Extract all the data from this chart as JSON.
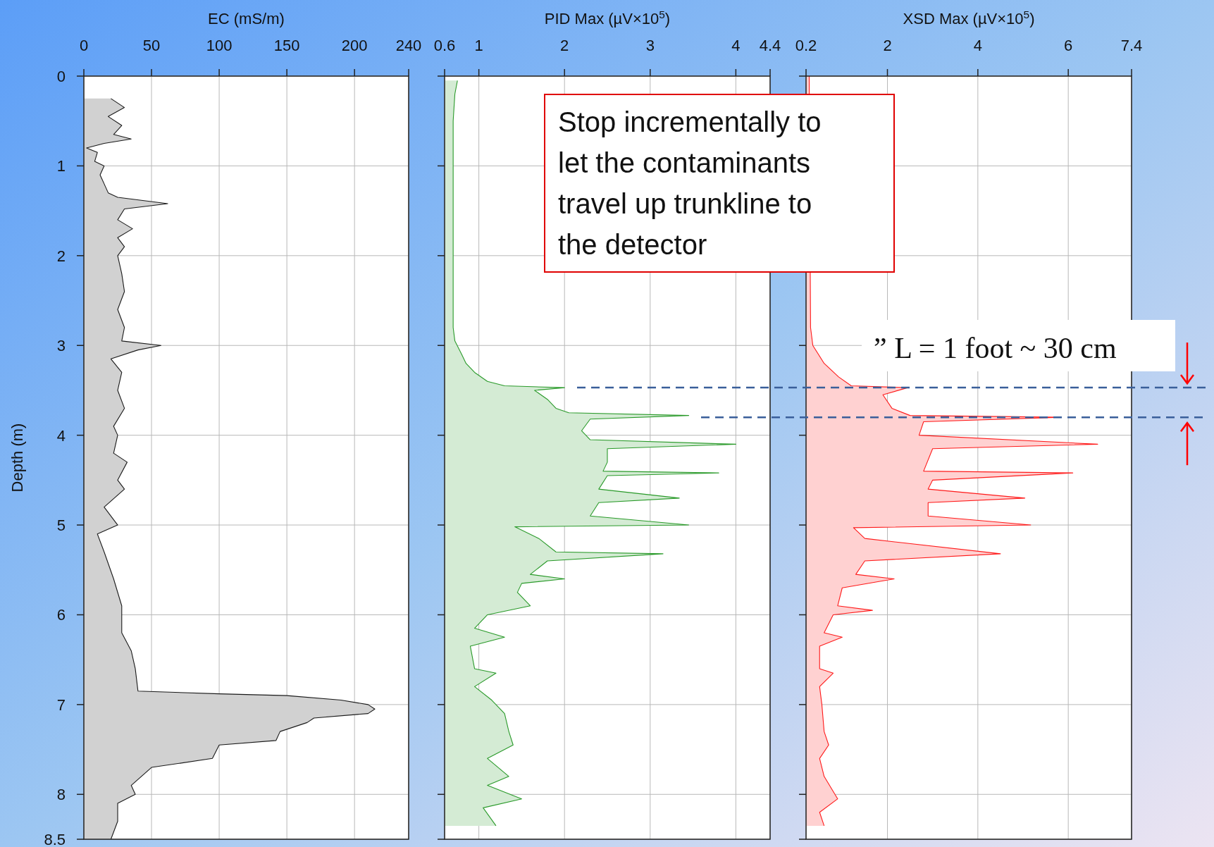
{
  "chart_data": [
    {
      "type": "area",
      "orientation": "horizontal",
      "xlabel": "EC (mS/m)",
      "ylabel": "Depth (m)",
      "xlim": [
        0,
        240
      ],
      "xticks": [
        0,
        50,
        100,
        150,
        200,
        240
      ],
      "ylim": [
        8.5,
        0
      ],
      "yticks": [
        0,
        1,
        2,
        3,
        4,
        5,
        6,
        7,
        8,
        8.5
      ],
      "grid": true,
      "series": [
        {
          "color": "#1a1a1a",
          "values": [
            20,
            30,
            18,
            28,
            22,
            35,
            15,
            2,
            10,
            8,
            15,
            12,
            15,
            18,
            25,
            62,
            30,
            25,
            36,
            25,
            30,
            25,
            28,
            30,
            25,
            30,
            28,
            57,
            40,
            20,
            28,
            25,
            30,
            22,
            25,
            22,
            32,
            25,
            30,
            15,
            25,
            10,
            15,
            22,
            28,
            28,
            35,
            38,
            40,
            100,
            150,
            190,
            210,
            215,
            210,
            170,
            165,
            145,
            142,
            100,
            95,
            50,
            35,
            38,
            25,
            25,
            20
          ],
          "x": [
            0.25,
            0.35,
            0.45,
            0.55,
            0.65,
            0.7,
            0.75,
            0.8,
            0.85,
            0.95,
            1.0,
            1.1,
            1.2,
            1.3,
            1.35,
            1.42,
            1.48,
            1.6,
            1.7,
            1.8,
            1.9,
            2.0,
            2.2,
            2.4,
            2.6,
            2.8,
            2.95,
            3.0,
            3.05,
            3.15,
            3.3,
            3.5,
            3.7,
            3.9,
            4.0,
            4.2,
            4.3,
            4.5,
            4.6,
            4.8,
            5.0,
            5.1,
            5.3,
            5.6,
            5.9,
            6.2,
            6.4,
            6.6,
            6.85,
            6.88,
            6.9,
            6.95,
            7.0,
            7.05,
            7.1,
            7.15,
            7.2,
            7.3,
            7.4,
            7.45,
            7.6,
            7.7,
            7.9,
            8.0,
            8.1,
            8.3,
            8.5
          ]
        }
      ]
    },
    {
      "type": "area",
      "orientation": "horizontal",
      "xlabel": "PID Max (µV×10$^{5}$)",
      "xlim": [
        0.6,
        4.4
      ],
      "xticks": [
        0.6,
        1,
        2,
        3,
        4,
        4.4
      ],
      "ylim": [
        8.5,
        0
      ],
      "yticks": [
        0,
        1,
        2,
        3,
        4,
        5,
        6,
        7,
        8,
        8.5
      ],
      "grid": true,
      "tick_labels": "x",
      "annotations": [
        "Stop incrementally to let the contaminants travel up trunkline to the detector"
      ],
      "series": [
        {
          "color": "#2a9a2a",
          "values": [
            0.75,
            0.72,
            0.7,
            0.7,
            0.7,
            0.7,
            0.72,
            0.8,
            0.85,
            0.95,
            1.1,
            1.3,
            2.0,
            1.65,
            1.8,
            1.9,
            2.05,
            3.45,
            2.3,
            2.2,
            2.3,
            4.0,
            2.5,
            2.5,
            2.45,
            3.8,
            2.5,
            2.4,
            3.34,
            2.4,
            2.3,
            3.45,
            1.42,
            1.7,
            1.9,
            3.15,
            1.8,
            1.6,
            2.0,
            1.5,
            1.45,
            1.6,
            1.1,
            0.95,
            1.3,
            0.9,
            0.95,
            1.2,
            0.95,
            1.15,
            1.3,
            1.35,
            1.4,
            1.1,
            1.35,
            1.1,
            1.5,
            1.05,
            1.2
          ],
          "x": [
            0.05,
            0.2,
            0.5,
            1.0,
            2.0,
            2.8,
            2.95,
            3.1,
            3.2,
            3.3,
            3.4,
            3.45,
            3.47,
            3.5,
            3.6,
            3.7,
            3.75,
            3.78,
            3.82,
            3.95,
            4.05,
            4.1,
            4.15,
            4.3,
            4.4,
            4.42,
            4.45,
            4.6,
            4.7,
            4.75,
            4.9,
            5.0,
            5.02,
            5.15,
            5.3,
            5.32,
            5.4,
            5.55,
            5.6,
            5.65,
            5.75,
            5.9,
            6.0,
            6.15,
            6.25,
            6.35,
            6.6,
            6.65,
            6.8,
            6.95,
            7.1,
            7.3,
            7.45,
            7.6,
            7.8,
            7.9,
            8.05,
            8.15,
            8.35
          ]
        }
      ]
    },
    {
      "type": "area",
      "orientation": "horizontal",
      "xlabel": "XSD Max (µV×10$^{5}$)",
      "xlim": [
        0.2,
        7.4
      ],
      "xticks": [
        0.2,
        2,
        4,
        6,
        7.4
      ],
      "ylim": [
        8.5,
        0
      ],
      "yticks": [
        0,
        1,
        2,
        3,
        4,
        5,
        6,
        7,
        8,
        8.5
      ],
      "grid": true,
      "tick_labels": "x",
      "annotations": [
        "” L = 1 foot ~ 30 cm"
      ],
      "ref_lines": [
        {
          "axis": "y",
          "value": 3.47,
          "color": "#3a5f9a",
          "line_style": "dashed"
        },
        {
          "axis": "y",
          "value": 3.8,
          "color": "#3a5f9a",
          "line_style": "dashed"
        }
      ],
      "series": [
        {
          "color": "#ff1a1a",
          "values": [
            0.27,
            null,
            0.3,
            0.35,
            0.6,
            0.92,
            1.2,
            2.45,
            1.9,
            2.1,
            2.5,
            5.84,
            2.8,
            2.7,
            6.65,
            3.0,
            2.8,
            6.1,
            3.0,
            2.9,
            5.04,
            2.9,
            2.9,
            5.17,
            1.25,
            1.5,
            4.5,
            1.5,
            1.3,
            2.15,
            1.0,
            0.9,
            1.67,
            0.8,
            0.6,
            1.0,
            0.5,
            0.5,
            0.8,
            0.5,
            0.55,
            0.6,
            0.7,
            0.5,
            0.6,
            0.9,
            0.5,
            0.6
          ],
          "x": [
            0,
            1.5,
            2.8,
            3.0,
            3.2,
            3.35,
            3.45,
            3.47,
            3.55,
            3.7,
            3.78,
            3.8,
            3.85,
            4.0,
            4.1,
            4.15,
            4.4,
            4.42,
            4.5,
            4.6,
            4.7,
            4.75,
            4.9,
            5.0,
            5.03,
            5.15,
            5.32,
            5.4,
            5.55,
            5.6,
            5.7,
            5.9,
            5.95,
            6.0,
            6.2,
            6.25,
            6.35,
            6.6,
            6.65,
            6.8,
            7.0,
            7.3,
            7.45,
            7.6,
            7.8,
            8.05,
            8.2,
            8.35
          ]
        }
      ]
    }
  ]
}
